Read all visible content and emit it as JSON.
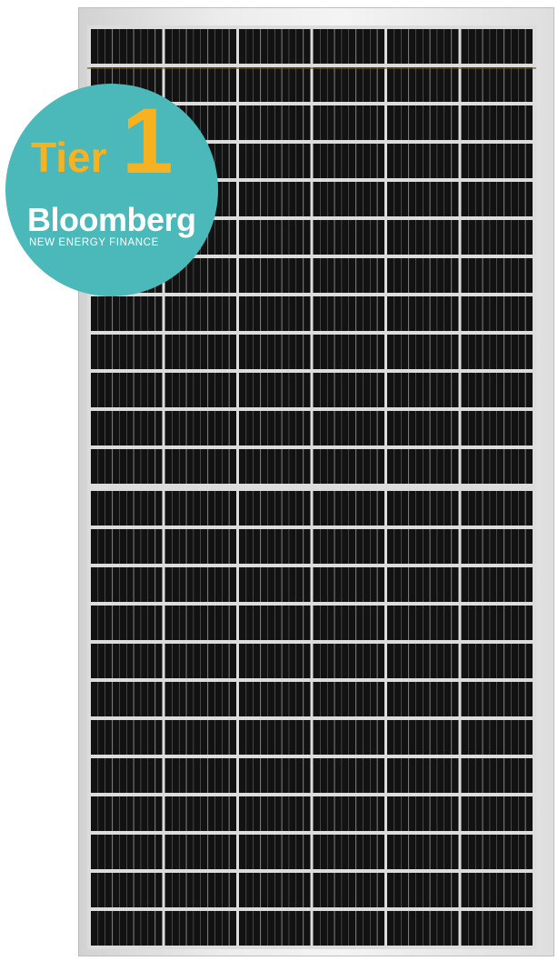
{
  "badge": {
    "tier_word": "Tier",
    "tier_number": "1",
    "brand": "Bloomberg",
    "brand_sub": "NEW ENERGY FINANCE"
  },
  "colors": {
    "badge_bg": "#4bb8b9",
    "tier_text": "#f6b221",
    "brand_text": "#ffffff",
    "cell": "#121212",
    "frame": "#e2e2e2"
  }
}
